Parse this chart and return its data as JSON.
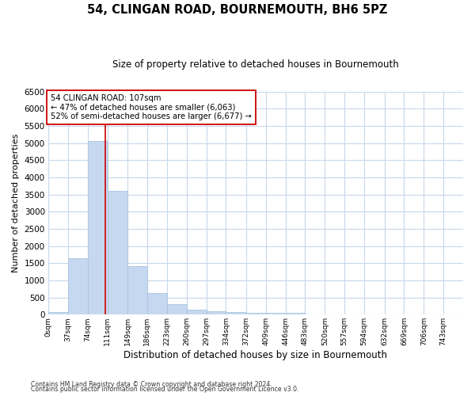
{
  "title": "54, CLINGAN ROAD, BOURNEMOUTH, BH6 5PZ",
  "subtitle": "Size of property relative to detached houses in Bournemouth",
  "xlabel": "Distribution of detached houses by size in Bournemouth",
  "ylabel": "Number of detached properties",
  "bar_color": "#c5d8f0",
  "bar_edge_color": "#a8c4e0",
  "background_color": "#ffffff",
  "grid_color": "#c8d8ea",
  "bin_edges": [
    0,
    37,
    74,
    111,
    149,
    186,
    223,
    260,
    297,
    334,
    372,
    409,
    446,
    483,
    520,
    557,
    594,
    632,
    669,
    706,
    743,
    780
  ],
  "bar_heights": [
    70,
    1640,
    5060,
    3600,
    1410,
    620,
    300,
    145,
    110,
    75,
    60,
    55,
    50,
    0,
    0,
    0,
    0,
    0,
    0,
    0,
    0
  ],
  "property_size": 107,
  "red_line_color": "#cc0000",
  "annotation_line1": "54 CLINGAN ROAD: 107sqm",
  "annotation_line2": "← 47% of detached houses are smaller (6,063)",
  "annotation_line3": "52% of semi-detached houses are larger (6,677) →",
  "ylim": [
    0,
    6500
  ],
  "yticks": [
    0,
    500,
    1000,
    1500,
    2000,
    2500,
    3000,
    3500,
    4000,
    4500,
    5000,
    5500,
    6000,
    6500
  ],
  "footnote1": "Contains HM Land Registry data © Crown copyright and database right 2024.",
  "footnote2": "Contains public sector information licensed under the Open Government Licence v3.0."
}
